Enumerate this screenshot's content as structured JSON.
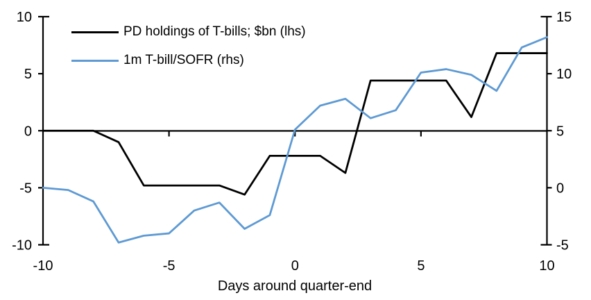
{
  "chart_data": {
    "type": "line",
    "title": "",
    "xlabel": "Days around quarter-end",
    "ylabel_left": "",
    "ylabel_right": "",
    "grid": false,
    "legend_position": "top-left",
    "x": [
      -10,
      -9,
      -8,
      -7,
      -6,
      -5,
      -4,
      -3,
      -2,
      -1,
      0,
      1,
      2,
      3,
      4,
      5,
      6,
      7,
      8,
      9,
      10
    ],
    "series": [
      {
        "name": "PD holdings of T-bills; $bn (lhs)",
        "axis": "left",
        "color": "#000000",
        "values": [
          0,
          0,
          0,
          -1.0,
          -4.8,
          -4.8,
          -4.8,
          -4.8,
          -5.6,
          -2.2,
          -2.2,
          -2.2,
          -3.7,
          4.4,
          4.4,
          4.4,
          4.4,
          1.2,
          6.8,
          6.8,
          6.8
        ]
      },
      {
        "name": "1m T-bill/SOFR (rhs)",
        "axis": "right",
        "color": "#5E9AD3",
        "values": [
          0.0,
          -0.2,
          -1.2,
          -4.8,
          -4.2,
          -4.0,
          -2.0,
          -1.3,
          -3.6,
          -2.4,
          5.1,
          7.2,
          7.8,
          6.1,
          6.8,
          10.1,
          10.4,
          9.9,
          8.5,
          12.3,
          13.2
        ]
      }
    ],
    "left_axis": {
      "ticks": [
        10,
        5,
        0,
        -5,
        -10
      ],
      "range": [
        -10,
        10
      ]
    },
    "right_axis": {
      "ticks": [
        15,
        10,
        5,
        0,
        -5
      ],
      "range": [
        -5,
        15
      ]
    },
    "x_axis": {
      "ticks": [
        -10,
        -5,
        0,
        5,
        10
      ],
      "labeled_ticks_on_zero_line": [
        -5,
        0,
        5
      ],
      "range": [
        -10,
        10
      ]
    }
  },
  "colors": {
    "background": "#ffffff",
    "axis": "#000000",
    "text": "#000000",
    "series_pd_holdings": "#000000",
    "series_tbill_sofr": "#5E9AD3"
  }
}
